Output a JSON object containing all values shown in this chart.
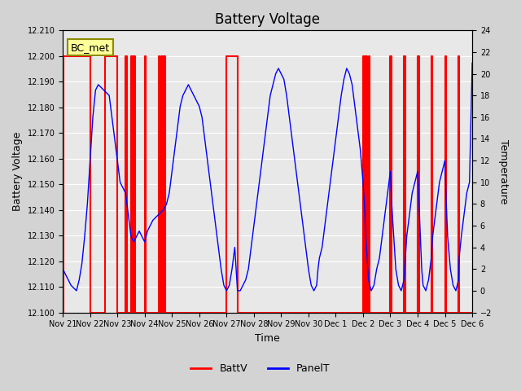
{
  "title": "Battery Voltage",
  "xlabel": "Time",
  "ylabel_left": "Battery Voltage",
  "ylabel_right": "Temperature",
  "ylim_left": [
    12.1,
    12.21
  ],
  "ylim_right": [
    -2,
    24
  ],
  "yticks_left": [
    12.1,
    12.11,
    12.12,
    12.13,
    12.14,
    12.15,
    12.16,
    12.17,
    12.18,
    12.19,
    12.2,
    12.21
  ],
  "yticks_right": [
    -2,
    0,
    2,
    4,
    6,
    8,
    10,
    12,
    14,
    16,
    18,
    20,
    22,
    24
  ],
  "background_color": "#d3d3d3",
  "plot_bg_color": "#e8e8e8",
  "annotation_text": "BC_met",
  "annotation_bg": "#ffff99",
  "annotation_border": "#8B8B00",
  "grid_color": "#ffffff",
  "batt_color": "#ff0000",
  "panel_color": "#0000ff",
  "legend_batt": "BattV",
  "legend_panel": "PanelT",
  "total_days": 15,
  "xtick_positions": [
    0,
    1,
    2,
    3,
    4,
    5,
    6,
    7,
    8,
    9,
    10,
    11,
    12,
    13,
    14,
    15
  ],
  "xtick_labels": [
    "Nov 21",
    "Nov 22",
    "Nov 23",
    "Nov 24",
    "Nov 25",
    "Nov 26",
    "Nov 27",
    "Nov 28",
    "Nov 29",
    "Nov 30",
    "Dec 1",
    "Dec 2",
    "Dec 3",
    "Dec 4",
    "Dec 5",
    "Dec 6"
  ],
  "batt_transitions": [
    [
      0.02,
      12.1
    ],
    [
      0.02,
      12.2
    ],
    [
      1.0,
      12.2
    ],
    [
      1.0,
      12.1
    ],
    [
      1.55,
      12.1
    ],
    [
      1.55,
      12.2
    ],
    [
      2.0,
      12.2
    ],
    [
      2.0,
      12.1
    ],
    [
      2.3,
      12.1
    ],
    [
      2.3,
      12.2
    ],
    [
      2.35,
      12.2
    ],
    [
      2.35,
      12.1
    ],
    [
      2.5,
      12.1
    ],
    [
      2.5,
      12.2
    ],
    [
      2.55,
      12.2
    ],
    [
      2.55,
      12.1
    ],
    [
      2.6,
      12.1
    ],
    [
      2.6,
      12.2
    ],
    [
      2.65,
      12.2
    ],
    [
      2.65,
      12.1
    ],
    [
      3.0,
      12.1
    ],
    [
      3.0,
      12.2
    ],
    [
      3.05,
      12.2
    ],
    [
      3.05,
      12.1
    ],
    [
      3.5,
      12.1
    ],
    [
      3.5,
      12.2
    ],
    [
      3.55,
      12.2
    ],
    [
      3.55,
      12.1
    ],
    [
      3.6,
      12.1
    ],
    [
      3.6,
      12.2
    ],
    [
      3.65,
      12.2
    ],
    [
      3.65,
      12.1
    ],
    [
      3.7,
      12.1
    ],
    [
      3.7,
      12.2
    ],
    [
      3.75,
      12.2
    ],
    [
      3.75,
      12.1
    ],
    [
      6.0,
      12.1
    ],
    [
      6.0,
      12.2
    ],
    [
      6.4,
      12.2
    ],
    [
      6.4,
      12.1
    ],
    [
      11.0,
      12.1
    ],
    [
      11.0,
      12.2
    ],
    [
      11.05,
      12.2
    ],
    [
      11.05,
      12.1
    ],
    [
      11.1,
      12.1
    ],
    [
      11.1,
      12.2
    ],
    [
      11.15,
      12.2
    ],
    [
      11.15,
      12.1
    ],
    [
      11.2,
      12.1
    ],
    [
      11.2,
      12.2
    ],
    [
      11.25,
      12.2
    ],
    [
      11.25,
      12.1
    ],
    [
      12.0,
      12.1
    ],
    [
      12.0,
      12.2
    ],
    [
      12.05,
      12.2
    ],
    [
      12.05,
      12.1
    ],
    [
      12.5,
      12.1
    ],
    [
      12.5,
      12.2
    ],
    [
      12.55,
      12.2
    ],
    [
      12.55,
      12.1
    ],
    [
      13.0,
      12.1
    ],
    [
      13.0,
      12.2
    ],
    [
      13.05,
      12.2
    ],
    [
      13.05,
      12.1
    ],
    [
      13.5,
      12.1
    ],
    [
      13.5,
      12.2
    ],
    [
      13.55,
      12.2
    ],
    [
      13.55,
      12.1
    ],
    [
      14.0,
      12.1
    ],
    [
      14.0,
      12.2
    ],
    [
      14.05,
      12.2
    ],
    [
      14.05,
      12.1
    ],
    [
      14.5,
      12.1
    ],
    [
      14.5,
      12.2
    ],
    [
      14.52,
      12.2
    ],
    [
      14.52,
      12.1
    ],
    [
      15.0,
      12.1
    ]
  ],
  "panel_t_data": [
    [
      0.0,
      2.0
    ],
    [
      0.1,
      1.5
    ],
    [
      0.2,
      1.0
    ],
    [
      0.3,
      0.5
    ],
    [
      0.5,
      0.0
    ],
    [
      0.6,
      1.0
    ],
    [
      0.7,
      2.5
    ],
    [
      0.8,
      5.0
    ],
    [
      0.9,
      8.0
    ],
    [
      1.0,
      12.0
    ],
    [
      1.1,
      16.0
    ],
    [
      1.2,
      18.5
    ],
    [
      1.3,
      19.0
    ],
    [
      1.5,
      18.5
    ],
    [
      1.7,
      18.0
    ],
    [
      1.8,
      16.0
    ],
    [
      1.9,
      14.0
    ],
    [
      2.0,
      12.0
    ],
    [
      2.1,
      10.0
    ],
    [
      2.2,
      9.5
    ],
    [
      2.3,
      9.0
    ],
    [
      2.35,
      8.0
    ],
    [
      2.4,
      7.0
    ],
    [
      2.45,
      6.0
    ],
    [
      2.5,
      5.0
    ],
    [
      2.6,
      4.5
    ],
    [
      2.7,
      5.0
    ],
    [
      2.8,
      5.5
    ],
    [
      2.9,
      5.0
    ],
    [
      3.0,
      4.5
    ],
    [
      3.1,
      5.5
    ],
    [
      3.2,
      6.0
    ],
    [
      3.3,
      6.5
    ],
    [
      3.5,
      7.0
    ],
    [
      3.7,
      7.5
    ],
    [
      3.8,
      8.0
    ],
    [
      3.9,
      9.0
    ],
    [
      4.0,
      11.0
    ],
    [
      4.1,
      13.0
    ],
    [
      4.2,
      15.0
    ],
    [
      4.3,
      17.0
    ],
    [
      4.4,
      18.0
    ],
    [
      4.5,
      18.5
    ],
    [
      4.6,
      19.0
    ],
    [
      4.7,
      18.5
    ],
    [
      4.8,
      18.0
    ],
    [
      5.0,
      17.0
    ],
    [
      5.1,
      16.0
    ],
    [
      5.2,
      14.0
    ],
    [
      5.3,
      12.0
    ],
    [
      5.4,
      10.0
    ],
    [
      5.5,
      8.0
    ],
    [
      5.6,
      6.0
    ],
    [
      5.7,
      4.0
    ],
    [
      5.8,
      2.0
    ],
    [
      5.9,
      0.5
    ],
    [
      6.0,
      0.0
    ],
    [
      6.1,
      0.5
    ],
    [
      6.2,
      2.0
    ],
    [
      6.3,
      4.0
    ],
    [
      6.4,
      0.0
    ],
    [
      6.5,
      0.0
    ],
    [
      6.6,
      0.5
    ],
    [
      6.7,
      1.0
    ],
    [
      6.8,
      2.0
    ],
    [
      6.9,
      4.0
    ],
    [
      7.0,
      6.0
    ],
    [
      7.1,
      8.0
    ],
    [
      7.2,
      10.0
    ],
    [
      7.3,
      12.0
    ],
    [
      7.35,
      13.0
    ],
    [
      7.4,
      14.0
    ],
    [
      7.5,
      16.0
    ],
    [
      7.6,
      18.0
    ],
    [
      7.7,
      19.0
    ],
    [
      7.8,
      20.0
    ],
    [
      7.9,
      20.5
    ],
    [
      8.0,
      20.0
    ],
    [
      8.1,
      19.5
    ],
    [
      8.2,
      18.0
    ],
    [
      8.3,
      16.0
    ],
    [
      8.4,
      14.0
    ],
    [
      8.5,
      12.0
    ],
    [
      8.6,
      10.0
    ],
    [
      8.7,
      8.0
    ],
    [
      8.8,
      6.0
    ],
    [
      8.9,
      4.0
    ],
    [
      9.0,
      2.0
    ],
    [
      9.1,
      0.5
    ],
    [
      9.2,
      0.0
    ],
    [
      9.3,
      0.5
    ],
    [
      9.35,
      2.0
    ],
    [
      9.4,
      3.0
    ],
    [
      9.5,
      4.0
    ],
    [
      9.6,
      6.0
    ],
    [
      9.7,
      8.0
    ],
    [
      9.8,
      10.0
    ],
    [
      9.9,
      12.0
    ],
    [
      10.0,
      14.0
    ],
    [
      10.1,
      16.0
    ],
    [
      10.2,
      18.0
    ],
    [
      10.3,
      19.5
    ],
    [
      10.4,
      20.5
    ],
    [
      10.5,
      20.0
    ],
    [
      10.6,
      19.0
    ],
    [
      10.7,
      17.0
    ],
    [
      10.8,
      15.0
    ],
    [
      10.9,
      13.0
    ],
    [
      11.0,
      10.0
    ],
    [
      11.05,
      8.0
    ],
    [
      11.1,
      5.0
    ],
    [
      11.15,
      3.0
    ],
    [
      11.2,
      1.0
    ],
    [
      11.3,
      0.0
    ],
    [
      11.4,
      0.5
    ],
    [
      11.5,
      2.0
    ],
    [
      11.6,
      3.0
    ],
    [
      11.7,
      5.0
    ],
    [
      11.8,
      7.0
    ],
    [
      11.9,
      9.0
    ],
    [
      12.0,
      11.0
    ],
    [
      12.05,
      8.0
    ],
    [
      12.1,
      6.0
    ],
    [
      12.15,
      4.0
    ],
    [
      12.2,
      2.0
    ],
    [
      12.3,
      0.5
    ],
    [
      12.4,
      0.0
    ],
    [
      12.5,
      1.0
    ],
    [
      12.55,
      3.0
    ],
    [
      12.6,
      5.0
    ],
    [
      12.7,
      7.0
    ],
    [
      12.8,
      9.0
    ],
    [
      12.9,
      10.0
    ],
    [
      13.0,
      11.0
    ],
    [
      13.05,
      8.0
    ],
    [
      13.1,
      5.0
    ],
    [
      13.15,
      2.0
    ],
    [
      13.2,
      0.5
    ],
    [
      13.3,
      0.0
    ],
    [
      13.4,
      1.0
    ],
    [
      13.5,
      3.0
    ],
    [
      13.55,
      5.0
    ],
    [
      13.6,
      6.0
    ],
    [
      13.7,
      8.0
    ],
    [
      13.8,
      10.0
    ],
    [
      13.9,
      11.0
    ],
    [
      14.0,
      12.0
    ],
    [
      14.05,
      8.0
    ],
    [
      14.1,
      5.0
    ],
    [
      14.2,
      2.0
    ],
    [
      14.3,
      0.5
    ],
    [
      14.4,
      0.0
    ],
    [
      14.5,
      1.0
    ],
    [
      14.52,
      3.0
    ],
    [
      14.6,
      5.0
    ],
    [
      14.7,
      7.0
    ],
    [
      14.8,
      9.0
    ],
    [
      14.9,
      10.0
    ],
    [
      15.0,
      21.0
    ]
  ]
}
